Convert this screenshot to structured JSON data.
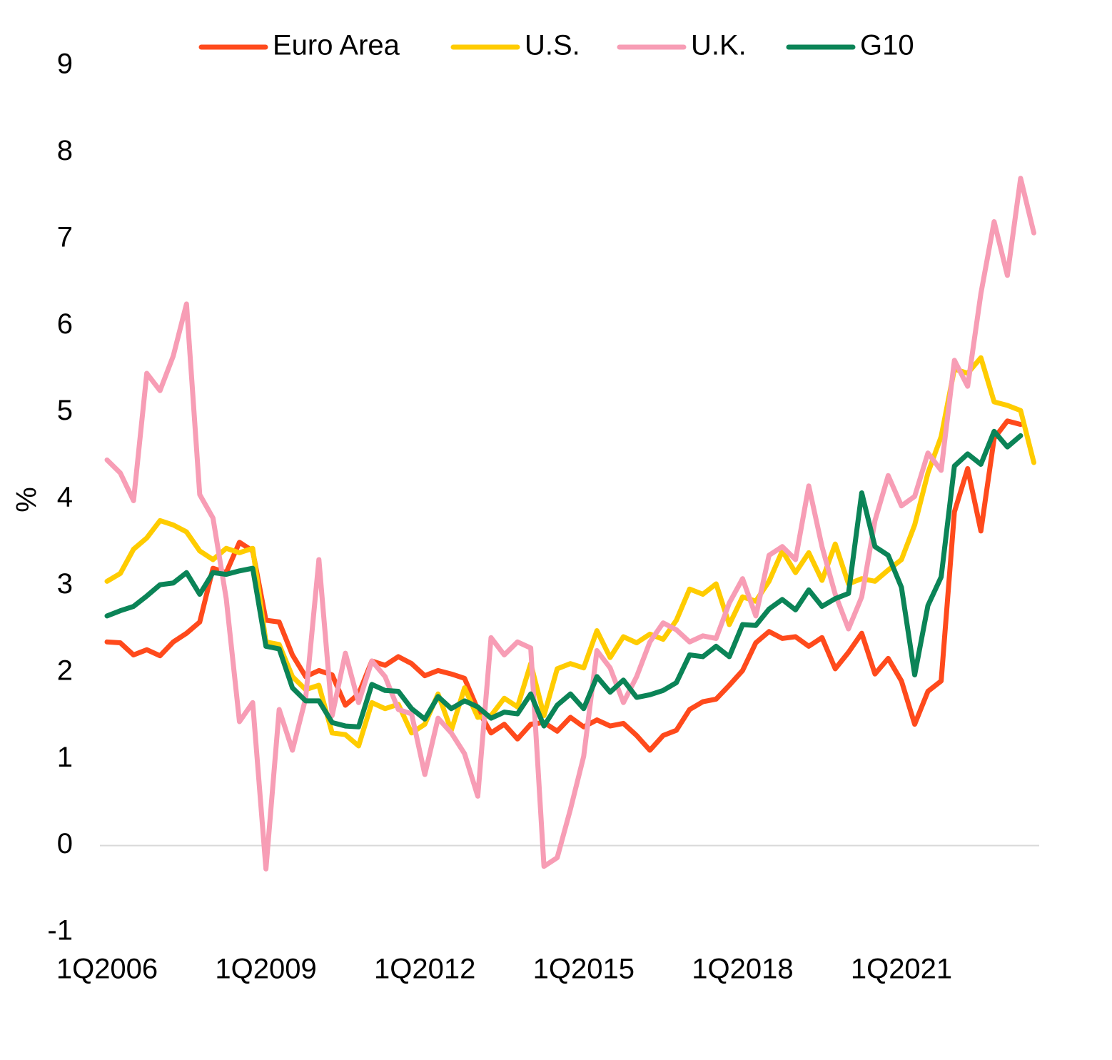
{
  "chart_data": {
    "type": "line",
    "y_label": "%",
    "categories": [
      "1Q2006",
      null,
      null,
      null,
      null,
      null,
      null,
      null,
      null,
      null,
      null,
      null,
      "1Q2009",
      null,
      null,
      null,
      null,
      null,
      null,
      null,
      null,
      null,
      null,
      null,
      "1Q2012",
      null,
      null,
      null,
      null,
      null,
      null,
      null,
      null,
      null,
      null,
      null,
      "1Q2015",
      null,
      null,
      null,
      null,
      null,
      null,
      null,
      null,
      null,
      null,
      null,
      "1Q2018",
      null,
      null,
      null,
      null,
      null,
      null,
      null,
      null,
      null,
      null,
      null,
      "1Q2021",
      null,
      null,
      null,
      null,
      null,
      null,
      null,
      null,
      null,
      null
    ],
    "series": [
      {
        "name": "Euro Area",
        "color": "#ff4a1c",
        "values": [
          2.35,
          2.34,
          2.2,
          2.26,
          2.19,
          2.35,
          2.45,
          2.58,
          3.2,
          3.15,
          3.5,
          3.4,
          2.6,
          2.58,
          2.2,
          1.95,
          2.02,
          1.97,
          1.62,
          1.75,
          2.13,
          2.08,
          2.18,
          2.1,
          1.96,
          2.02,
          1.98,
          1.93,
          1.57,
          1.3,
          1.4,
          1.23,
          1.4,
          1.42,
          1.32,
          1.48,
          1.37,
          1.45,
          1.38,
          1.41,
          1.27,
          1.1,
          1.27,
          1.33,
          1.57,
          1.66,
          1.69,
          1.85,
          2.02,
          2.34,
          2.47,
          2.39,
          2.41,
          2.3,
          2.4,
          2.04,
          2.23,
          2.45,
          1.98,
          2.16,
          1.9,
          1.4,
          1.78,
          1.9,
          3.85,
          4.35,
          3.63,
          4.7,
          4.9,
          4.86,
          null
        ]
      },
      {
        "name": "U.S.",
        "color": "#ffcc00",
        "values": [
          3.05,
          3.14,
          3.42,
          3.55,
          3.75,
          3.7,
          3.62,
          3.4,
          3.3,
          3.43,
          3.38,
          3.43,
          2.35,
          2.32,
          1.95,
          1.8,
          1.85,
          1.3,
          1.28,
          1.15,
          1.65,
          1.58,
          1.63,
          1.3,
          1.4,
          1.75,
          1.33,
          1.82,
          1.48,
          1.5,
          1.7,
          1.6,
          2.1,
          1.5,
          2.04,
          2.1,
          2.05,
          2.48,
          2.17,
          2.41,
          2.34,
          2.44,
          2.38,
          2.6,
          2.96,
          2.9,
          3.02,
          2.55,
          2.87,
          2.82,
          3.05,
          3.4,
          3.15,
          3.38,
          3.06,
          3.48,
          3.02,
          3.08,
          3.05,
          3.18,
          3.3,
          3.7,
          4.3,
          4.72,
          5.5,
          5.45,
          5.63,
          5.12,
          5.08,
          5.02,
          4.42
        ]
      },
      {
        "name": "U.K.",
        "color": "#f79db5",
        "values": [
          4.45,
          4.3,
          3.98,
          5.45,
          5.25,
          5.65,
          6.25,
          4.05,
          3.78,
          2.85,
          1.43,
          1.65,
          -0.27,
          1.57,
          1.1,
          1.7,
          3.3,
          1.5,
          2.22,
          1.65,
          2.13,
          1.95,
          1.57,
          1.52,
          0.82,
          1.47,
          1.3,
          1.06,
          0.57,
          2.4,
          2.2,
          2.35,
          2.28,
          -0.24,
          -0.14,
          0.42,
          1.03,
          2.25,
          2.05,
          1.65,
          1.95,
          2.35,
          2.57,
          2.49,
          2.35,
          2.42,
          2.39,
          2.8,
          3.08,
          2.65,
          3.35,
          3.45,
          3.3,
          4.15,
          3.45,
          2.9,
          2.5,
          2.87,
          3.75,
          4.27,
          3.92,
          4.03,
          4.53,
          4.33,
          5.6,
          5.3,
          6.37,
          7.2,
          6.58,
          7.7,
          7.07
        ]
      },
      {
        "name": "G10",
        "color": "#0b8457",
        "values": [
          2.65,
          2.71,
          2.76,
          2.88,
          3.01,
          3.03,
          3.15,
          2.9,
          3.15,
          3.13,
          3.17,
          3.2,
          2.3,
          2.27,
          1.82,
          1.67,
          1.67,
          1.42,
          1.38,
          1.37,
          1.86,
          1.79,
          1.78,
          1.58,
          1.46,
          1.72,
          1.58,
          1.67,
          1.6,
          1.47,
          1.54,
          1.52,
          1.75,
          1.38,
          1.62,
          1.75,
          1.58,
          1.95,
          1.77,
          1.91,
          1.71,
          1.74,
          1.79,
          1.88,
          2.2,
          2.18,
          2.3,
          2.18,
          2.55,
          2.54,
          2.73,
          2.84,
          2.72,
          2.95,
          2.76,
          2.85,
          2.91,
          4.07,
          3.45,
          3.35,
          2.98,
          1.97,
          2.77,
          3.1,
          4.38,
          4.52,
          4.4,
          4.78,
          4.6,
          4.73,
          null
        ]
      }
    ],
    "ylim": [
      -1,
      9
    ],
    "yticks": [
      -1,
      0,
      1,
      2,
      3,
      4,
      5,
      6,
      7,
      8,
      9
    ],
    "grid": false,
    "legend": "top"
  }
}
